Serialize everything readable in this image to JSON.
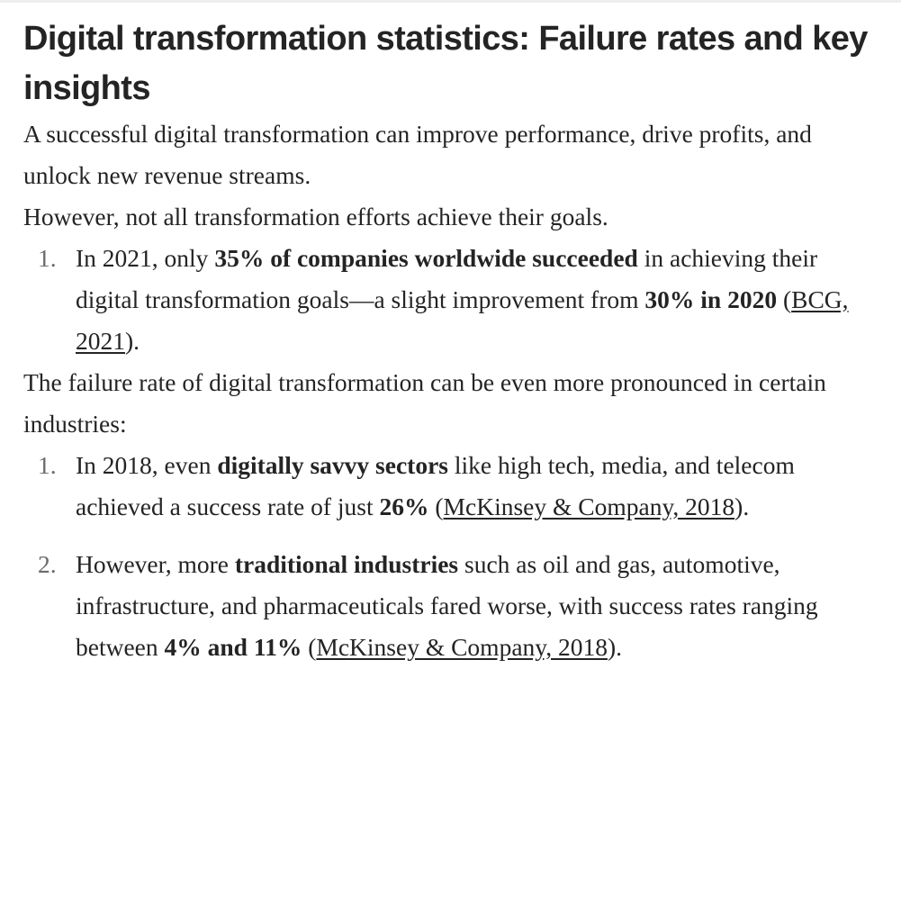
{
  "article": {
    "title": "Digital transformation statistics: Failure rates and key insights",
    "intro_paragraph": "A successful digital transformation can improve performance, drive profits, and unlock new revenue streams.",
    "however_paragraph": "However, not all transformation efforts achieve their goals.",
    "list1": [
      {
        "number": "1.",
        "t1": "In 2021, only ",
        "b1": "35% of companies worldwide succeeded",
        "t2": " in achieving their digital transformation goals—a slight improvement from ",
        "b2": "30% in 2020",
        "t3": " (",
        "link": "BCG, 2021",
        "t4": ")."
      }
    ],
    "industries_paragraph": "The failure rate of digital transformation can be even more pronounced in certain industries:",
    "list2": [
      {
        "number": "1.",
        "t1": "In 2018, even ",
        "b1": "digitally savvy sectors",
        "t2": " like high tech, media, and telecom achieved a success rate of just ",
        "b2": "26%",
        "t3": " (",
        "link": "McKinsey & Company, 2018",
        "t4": ")."
      },
      {
        "number": "2.",
        "t1": "However, more ",
        "b1": "traditional industries",
        "t2": " such as oil and gas, automotive, infrastructure, and pharmaceuticals fared worse, with success rates ranging between ",
        "b2": "4% and 11%",
        "t3": " (",
        "link": "McKinsey & Company, 2018",
        "t4": ")."
      }
    ]
  }
}
